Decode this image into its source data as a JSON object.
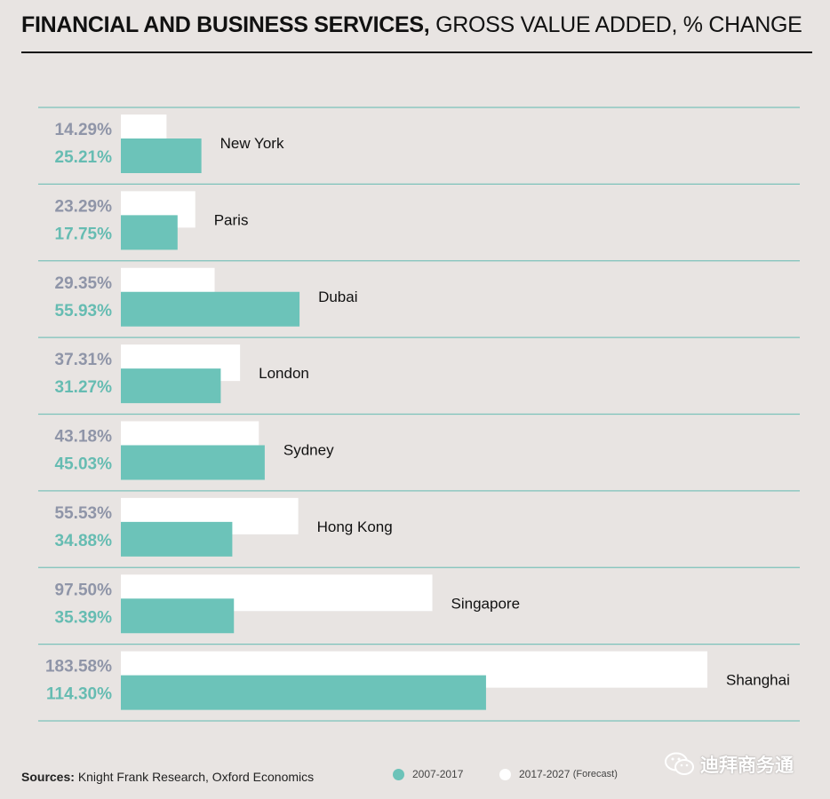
{
  "title": {
    "bold": "FINANCIAL AND BUSINESS SERVICES,",
    "regular": "GROSS VALUE ADDED, % CHANGE"
  },
  "colors": {
    "past": "#6cc3b9",
    "forecast": "#ffffff",
    "forecast_label": "#8f95a8",
    "past_label": "#66bcb2",
    "rule": "#7cc2ba"
  },
  "chart_data": {
    "type": "bar",
    "orientation": "horizontal",
    "title": "FINANCIAL AND BUSINESS SERVICES, GROSS VALUE ADDED, % CHANGE",
    "categories": [
      "New York",
      "Paris",
      "Dubai",
      "London",
      "Sydney",
      "Hong Kong",
      "Singapore",
      "Shanghai"
    ],
    "series": [
      {
        "name": "2017-2027 (Forecast)",
        "values": [
          14.29,
          23.29,
          29.35,
          37.31,
          43.18,
          55.53,
          97.5,
          183.58
        ],
        "labels": [
          "14.29%",
          "23.29%",
          "29.35%",
          "37.31%",
          "43.18%",
          "55.53%",
          "97.50%",
          "183.58%"
        ]
      },
      {
        "name": "2007-2017",
        "values": [
          25.21,
          17.75,
          55.93,
          31.27,
          45.03,
          34.88,
          35.39,
          114.3
        ],
        "labels": [
          "25.21%",
          "17.75%",
          "55.93%",
          "31.27%",
          "45.03%",
          "34.88%",
          "35.39%",
          "114.30%"
        ]
      }
    ],
    "xlim": [
      0,
      183.58
    ],
    "grid": false,
    "legend_position": "bottom"
  },
  "legend": [
    {
      "label": "2007-2017",
      "sub": ""
    },
    {
      "label": "2017-2027",
      "sub": "(Forecast)"
    }
  ],
  "footer": {
    "source_label": "Sources:",
    "source_text": "Knight Frank Research, Oxford Economics"
  },
  "watermark": {
    "text": "迪拜商务通",
    "icon": "wechat-icon"
  }
}
